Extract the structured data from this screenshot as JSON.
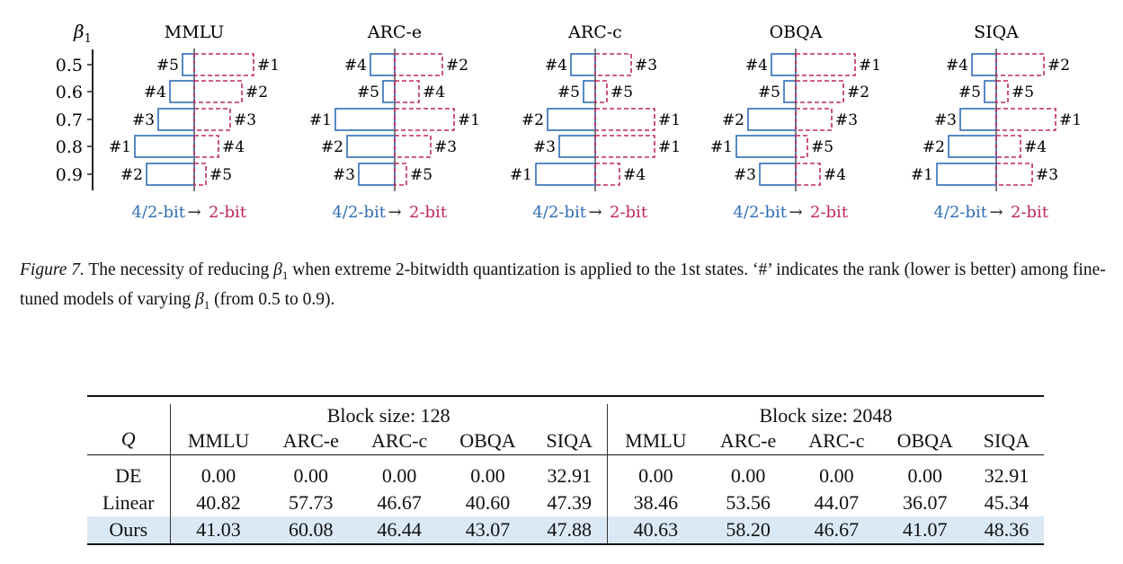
{
  "figure": {
    "y_axis_label": "β",
    "y_axis_label_sub": "1",
    "legend_left": "4/2-bit",
    "legend_arrow": "→",
    "legend_right": "2-bit",
    "colors": {
      "left_bar": "#2f6db5",
      "right_bar": "#c0285a",
      "axis": "#222222"
    }
  },
  "chart_data": {
    "type": "bar",
    "categories": [
      "0.5",
      "0.6",
      "0.7",
      "0.8",
      "0.9"
    ],
    "scale_note": "bar lengths encode rank; rank 1 = longest",
    "panels": [
      {
        "title": "MMLU",
        "left_rank": [
          5,
          4,
          3,
          1,
          2
        ],
        "right_rank": [
          1,
          2,
          3,
          4,
          5
        ]
      },
      {
        "title": "ARC-e",
        "left_rank": [
          4,
          5,
          1,
          2,
          3
        ],
        "right_rank": [
          2,
          4,
          1,
          3,
          5
        ]
      },
      {
        "title": "ARC-c",
        "left_rank": [
          4,
          5,
          2,
          3,
          1
        ],
        "right_rank": [
          3,
          5,
          1,
          1,
          4
        ]
      },
      {
        "title": "OBQA",
        "left_rank": [
          4,
          5,
          2,
          1,
          3
        ],
        "right_rank": [
          1,
          2,
          3,
          5,
          4
        ]
      },
      {
        "title": "SIQA",
        "left_rank": [
          4,
          5,
          3,
          2,
          1
        ],
        "right_rank": [
          2,
          5,
          1,
          4,
          3
        ]
      }
    ]
  },
  "caption": {
    "label": "Figure 7.",
    "part1": " The necessity of reducing ",
    "beta": "β",
    "beta_sub": "1",
    "part2": " when extreme 2-bitwidth quantization is applied to the 1st states. ‘#’ indicates the rank (lower is better) among fine-tuned models of varying ",
    "part3": " (from 0.5 to 0.9)."
  },
  "table": {
    "q_header": "Q",
    "group1": "Block size: 128",
    "group2": "Block size: 2048",
    "columns": [
      "MMLU",
      "ARC-e",
      "ARC-c",
      "OBQA",
      "SIQA"
    ],
    "rows": [
      {
        "method": "DE",
        "values": [
          "0.00",
          "0.00",
          "0.00",
          "0.00",
          "32.91",
          "0.00",
          "0.00",
          "0.00",
          "0.00",
          "32.91"
        ],
        "highlight": false
      },
      {
        "method": "Linear",
        "values": [
          "40.82",
          "57.73",
          "46.67",
          "40.60",
          "47.39",
          "38.46",
          "53.56",
          "44.07",
          "36.07",
          "45.34"
        ],
        "highlight": false
      },
      {
        "method": "Ours",
        "values": [
          "41.03",
          "60.08",
          "46.44",
          "43.07",
          "47.88",
          "40.63",
          "58.20",
          "46.67",
          "41.07",
          "48.36"
        ],
        "highlight": true
      }
    ]
  }
}
